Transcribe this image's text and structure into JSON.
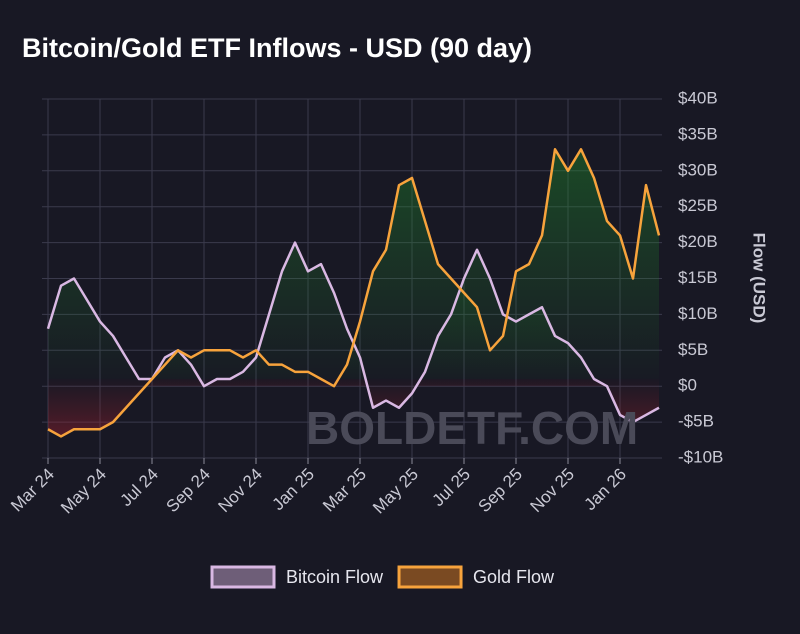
{
  "chart_data": {
    "type": "line",
    "title": "Bitcoin/Gold ETF Inflows - USD (90 day)",
    "y_label": "Flow (USD)",
    "watermark": "BOLDETF.COM",
    "categories": [
      "Mar 24",
      null,
      null,
      null,
      "May 24",
      null,
      null,
      null,
      "Jul 24",
      null,
      null,
      null,
      "Sep 24",
      null,
      null,
      null,
      "Nov 24",
      null,
      null,
      null,
      "Jan 25",
      null,
      null,
      null,
      "Mar 25",
      null,
      null,
      null,
      "May 25",
      null,
      null,
      null,
      "Jul 25",
      null,
      null,
      null,
      "Sep 25",
      null,
      null,
      null,
      "Nov 25",
      null,
      null,
      null,
      "Jan 26",
      null,
      null,
      null
    ],
    "series": [
      {
        "name": "Bitcoin Flow",
        "color": "#d9b8e3",
        "values": [
          8,
          14,
          15,
          12,
          9,
          7,
          4,
          1,
          1,
          4,
          5,
          3,
          0,
          1,
          1,
          2,
          4,
          10,
          16,
          20,
          16,
          17,
          13,
          8,
          4,
          -3,
          -2,
          -3,
          -1,
          2,
          7,
          10,
          15,
          19,
          15,
          10,
          9,
          10,
          11,
          7,
          6,
          4,
          1,
          0,
          -4,
          -5,
          -4,
          -3
        ]
      },
      {
        "name": "Gold Flow",
        "color": "#f7a33c",
        "values": [
          -6,
          -7,
          -6,
          -6,
          -6,
          -5,
          -3,
          -1,
          1,
          3,
          5,
          4,
          5,
          5,
          5,
          4,
          5,
          3,
          3,
          2,
          2,
          1,
          0,
          3,
          9,
          16,
          19,
          28,
          29,
          23,
          17,
          15,
          13,
          11,
          5,
          7,
          16,
          17,
          21,
          33,
          30,
          33,
          29,
          23,
          21,
          15,
          28,
          21
        ]
      }
    ],
    "ylim": [
      -10,
      40
    ],
    "yticks": [
      {
        "value": -10,
        "label": "-$10B"
      },
      {
        "value": -5,
        "label": "-$5B"
      },
      {
        "value": 0,
        "label": "$0"
      },
      {
        "value": 5,
        "label": "$5B"
      },
      {
        "value": 10,
        "label": "$10B"
      },
      {
        "value": 15,
        "label": "$15B"
      },
      {
        "value": 20,
        "label": "$20B"
      },
      {
        "value": 25,
        "label": "$25B"
      },
      {
        "value": 30,
        "label": "$30B"
      },
      {
        "value": 35,
        "label": "$35B"
      },
      {
        "value": 40,
        "label": "$40B"
      }
    ],
    "grid": true,
    "legend": "bottom"
  }
}
